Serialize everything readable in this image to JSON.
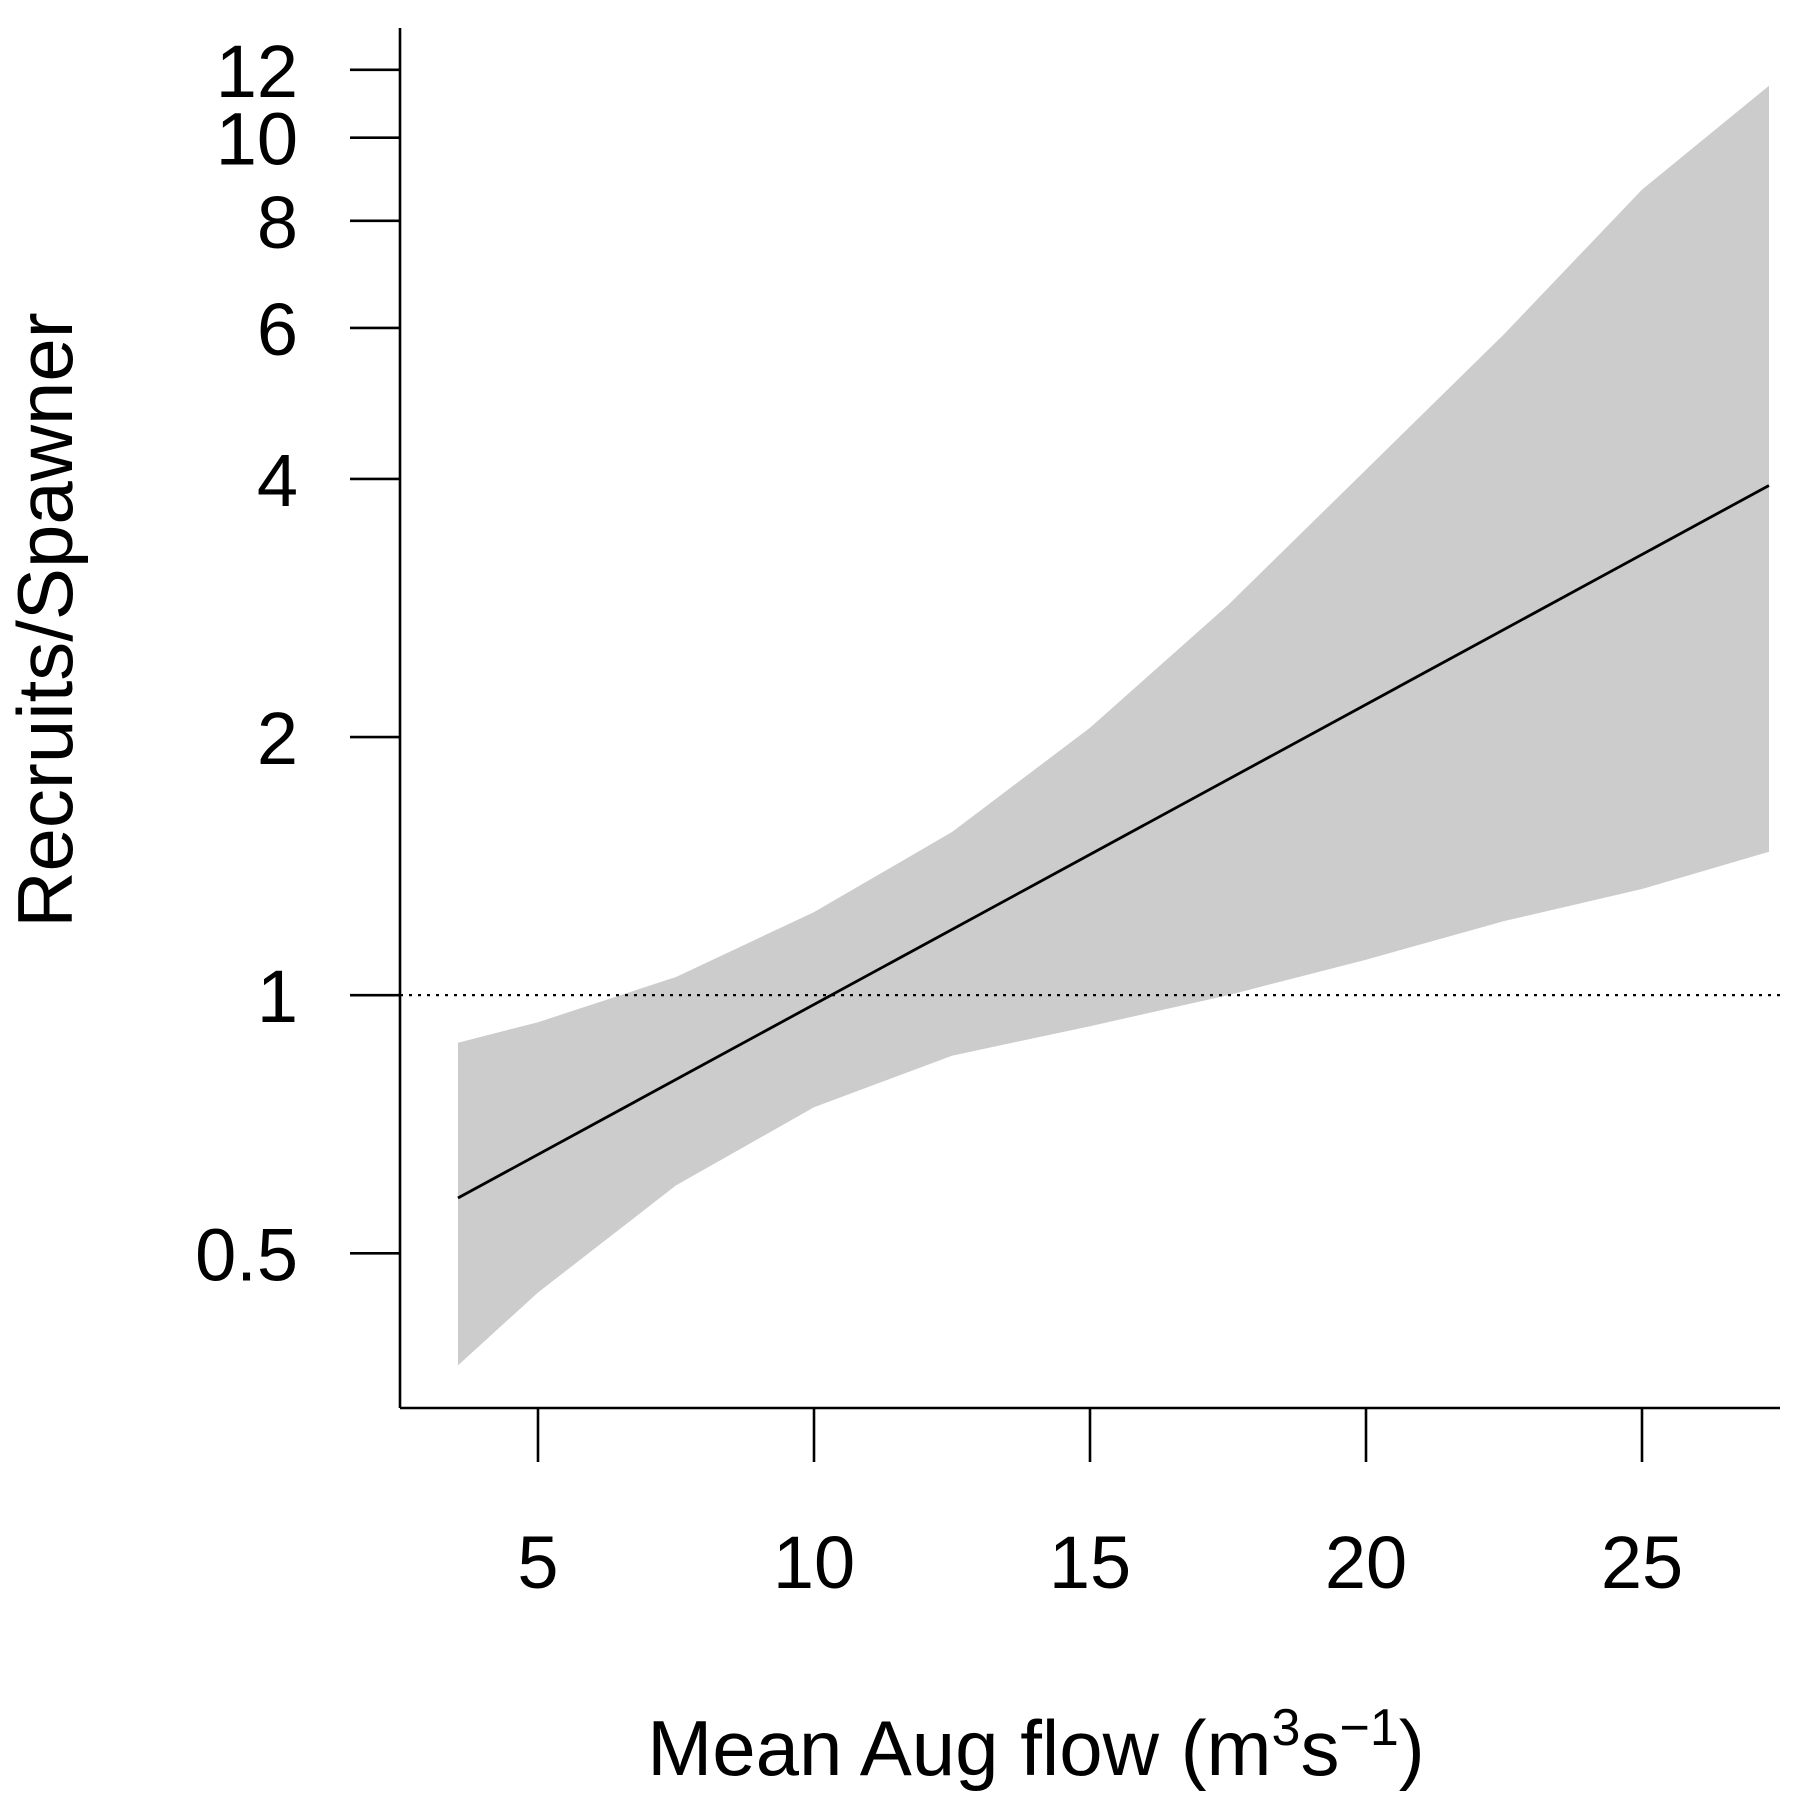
{
  "chart_data": {
    "type": "line",
    "xlabel": "Mean Aug flow (m",
    "xlabel_sup1": "3",
    "xlabel_mid": "s",
    "xlabel_sup2": "−1",
    "xlabel_end": ")",
    "ylabel": "Recruits/Spawner",
    "xlim": [
      2.5,
      27.5
    ],
    "ylim": [
      0.33,
      13
    ],
    "y_scale": "log",
    "x_ticks": [
      5,
      10,
      15,
      20,
      25
    ],
    "x_tick_labels": [
      "5",
      "10",
      "15",
      "20",
      "25"
    ],
    "y_ticks": [
      0.5,
      1,
      2,
      4,
      6,
      8,
      10,
      12
    ],
    "y_tick_labels": [
      "0.5",
      "1",
      "2",
      "4",
      "6",
      "8",
      "10",
      "12"
    ],
    "grid": false,
    "reference_line": {
      "y": 1,
      "style": "dotted",
      "color": "#000000"
    },
    "fit": {
      "x": [
        3.55,
        27.3
      ],
      "y": [
        0.58,
        3.93
      ],
      "color": "#000000"
    },
    "ci_band": {
      "color": "#cccccc",
      "x": [
        3.55,
        5,
        7.5,
        10,
        12.5,
        15,
        17.5,
        20,
        22.5,
        25,
        27.3
      ],
      "lower": [
        0.37,
        0.45,
        0.6,
        0.74,
        0.85,
        0.92,
        1.0,
        1.1,
        1.22,
        1.33,
        1.47
      ],
      "upper": [
        0.88,
        0.93,
        1.05,
        1.25,
        1.55,
        2.05,
        2.85,
        4.1,
        5.9,
        8.7,
        11.5
      ]
    }
  }
}
